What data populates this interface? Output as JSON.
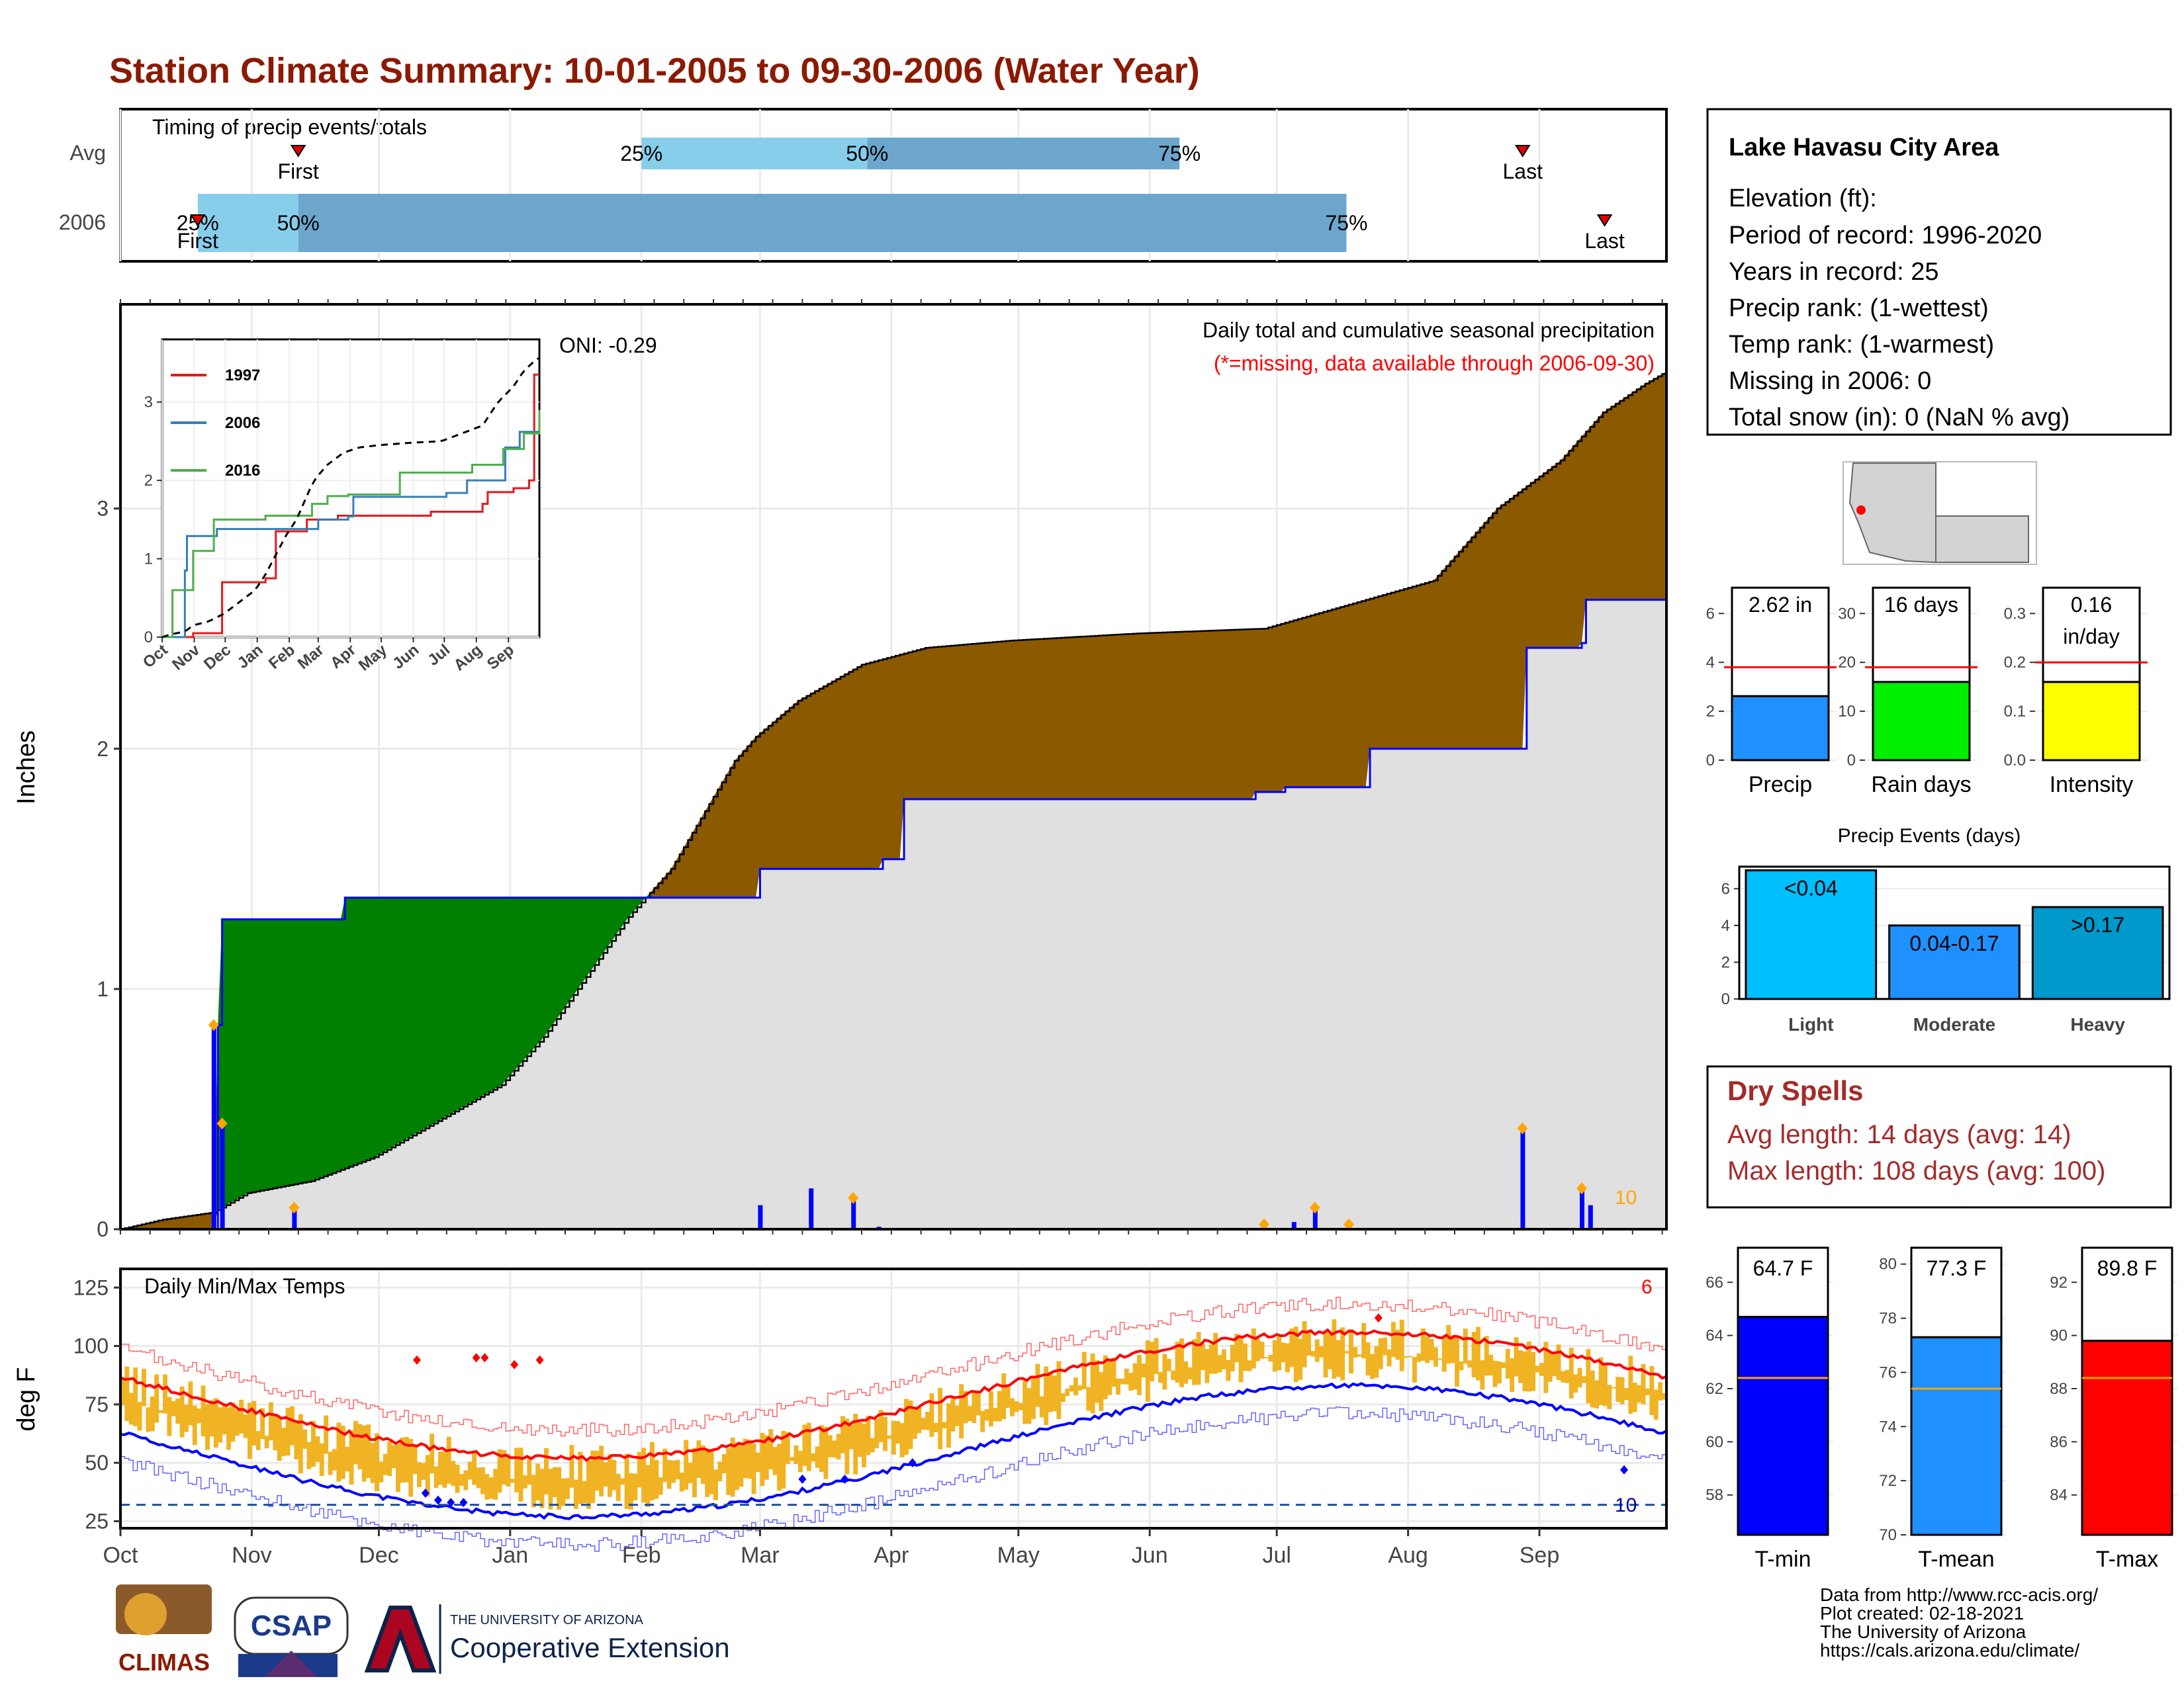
{
  "title": "Station Climate Summary: 10-01-2005 to 09-30-2006 (Water Year)",
  "timing": {
    "title": "Timing of precip events/totals",
    "rows": [
      {
        "label": "Avg",
        "first_x": 0.115,
        "last_x": 0.907,
        "q25": 0.337,
        "q50": 0.483,
        "q75": 0.685
      },
      {
        "label": "2006",
        "first_x": 0.05,
        "last_x": 0.96,
        "q25": 0.05,
        "q50": 0.115,
        "q75": 0.793
      }
    ],
    "first_label": "First",
    "last_label": "Last",
    "q_labels": [
      "25%",
      "50%",
      "75%"
    ],
    "colors": {
      "light": "#87CEEB",
      "dark": "#6CA6CD",
      "marker": "#e00000"
    }
  },
  "precip": {
    "ylabel": "Inches",
    "note_title": "Daily total and cumulative seasonal precipitation",
    "note_missing": "(*=missing, data available through 2006-09-30)",
    "oni": "ONI: -0.29",
    "count_label": "10",
    "ylim": [
      0,
      3.85
    ],
    "yticks": [
      0,
      1,
      2,
      3
    ]
  },
  "temps": {
    "title": "Daily Min/Max Temps",
    "ylabel": "deg F",
    "ylim": [
      22,
      133
    ],
    "yticks": [
      25,
      50,
      75,
      100,
      125
    ],
    "freeze_line": 32,
    "hi_count": "6",
    "lo_count": "10"
  },
  "months": [
    "Oct",
    "Nov",
    "Dec",
    "Jan",
    "Feb",
    "Mar",
    "Apr",
    "May",
    "Jun",
    "Jul",
    "Aug",
    "Sep"
  ],
  "month_start_days": [
    0,
    31,
    61,
    92,
    123,
    151,
    182,
    212,
    243,
    273,
    304,
    335
  ],
  "inset": {
    "legend": [
      "1997",
      "2006",
      "2016"
    ],
    "colors": [
      "#e41a1c",
      "#377eb8",
      "#4daf4a"
    ],
    "yticks": [
      0,
      1,
      2,
      3
    ],
    "months": [
      "Oct",
      "Nov",
      "Dec",
      "Jan",
      "Feb",
      "Mar",
      "Apr",
      "May",
      "Jun",
      "Jul",
      "Aug",
      "Sep"
    ]
  },
  "station": {
    "name": "Lake Havasu City Area",
    "lines": [
      "Elevation (ft): ",
      "Period of record: 1996-2020",
      "Years in record: 25",
      "Precip rank:  (1-wettest)",
      "Temp rank:  (1-warmest)",
      "Missing in 2006: 0",
      "Total snow (in): 0 (NaN % avg)"
    ]
  },
  "mini_bars": [
    {
      "label": "Precip",
      "value_label": "2.62 in",
      "value": 2.62,
      "avg": 3.8,
      "ymax": 7.2,
      "ticks": [
        0,
        2,
        4,
        6
      ],
      "color": "#1E90FF"
    },
    {
      "label": "Rain days",
      "value_label": "16 days",
      "value": 16,
      "avg": 19,
      "ymax": 36,
      "ticks": [
        0,
        10,
        20,
        30
      ],
      "color": "#00ee00"
    },
    {
      "label": "Intensity",
      "value_label": "0.16 in/day",
      "value_lines": [
        "0.16",
        "in/day"
      ],
      "value": 0.16,
      "avg": 0.2,
      "ymax": 0.36,
      "ticks": [
        "0.0",
        "0.1",
        "0.2",
        "0.3"
      ],
      "color": "#ffff00"
    }
  ],
  "events": {
    "title": "Precip Events (days)",
    "categories": [
      "Light",
      "Moderate",
      "Heavy"
    ],
    "bar_labels": [
      "<0.04",
      "0.04-0.17",
      ">0.17"
    ],
    "values": [
      7,
      4,
      5
    ],
    "ymax": 7.2,
    "ticks": [
      0,
      2,
      4,
      6
    ],
    "colors": [
      "#00BFFF",
      "#1E90FF",
      "#0099CC"
    ]
  },
  "dry": {
    "title": "Dry Spells",
    "avg": "Avg length: 14 days (avg: 14)",
    "max": "Max length: 108 days (avg: 100)"
  },
  "temp_bars": [
    {
      "label": "T-min",
      "value_label": "64.7 F",
      "value": 64.7,
      "avg": 62.4,
      "ylim": [
        56.5,
        67.5
      ],
      "ticks": [
        58,
        60,
        62,
        64,
        66
      ],
      "color": "#0000ff"
    },
    {
      "label": "T-mean",
      "value_label": "77.3 F",
      "value": 77.3,
      "avg": 75.4,
      "ylim": [
        70,
        80.8
      ],
      "ticks": [
        70,
        72,
        74,
        76,
        78,
        80
      ],
      "color": "#1E90FF"
    },
    {
      "label": "T-max",
      "value_label": "89.8 F",
      "value": 89.8,
      "avg": 88.4,
      "ylim": [
        82.5,
        93.5
      ],
      "ticks": [
        84,
        86,
        88,
        90,
        92
      ],
      "color": "#ff0000"
    }
  ],
  "footer": {
    "lines": [
      "Data from http://www.rcc-acis.org/",
      "Plot created: 02-18-2021",
      "The University of Arizona",
      "https://cals.arizona.edu/climate/"
    ],
    "logo_climas": "CLIMAS",
    "logo_csap": "CSAP",
    "ua_small": "THE UNIVERSITY OF ARIZONA",
    "ua_big": "Cooperative Extension"
  }
}
